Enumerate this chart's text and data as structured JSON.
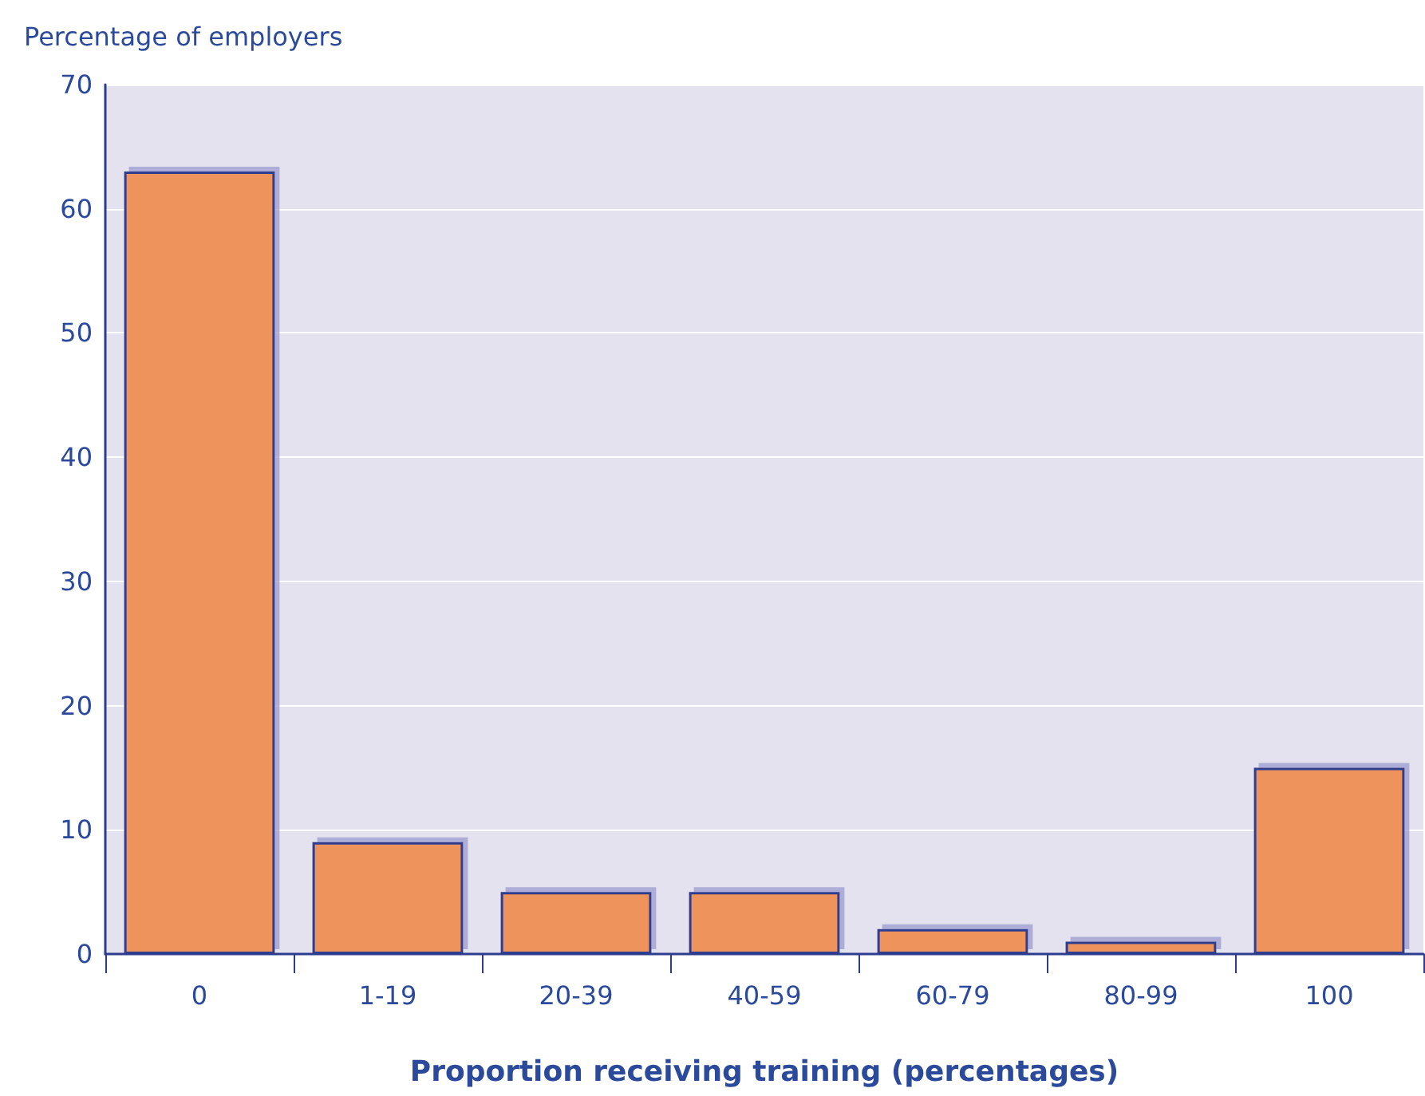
{
  "chart_data": {
    "type": "bar",
    "xlabel": "Proportion receiving training (percentages)",
    "ylabel": "Percentage of employers",
    "categories": [
      "0",
      "1-19",
      "20-39",
      "40-59",
      "60-79",
      "80-99",
      "100"
    ],
    "values": [
      63,
      9,
      5,
      5,
      2,
      1,
      15
    ],
    "color": "#ef935b",
    "ylim": [
      0,
      70
    ],
    "yticks": [
      0,
      10,
      20,
      30,
      40,
      50,
      60,
      70
    ],
    "grid": "y"
  }
}
